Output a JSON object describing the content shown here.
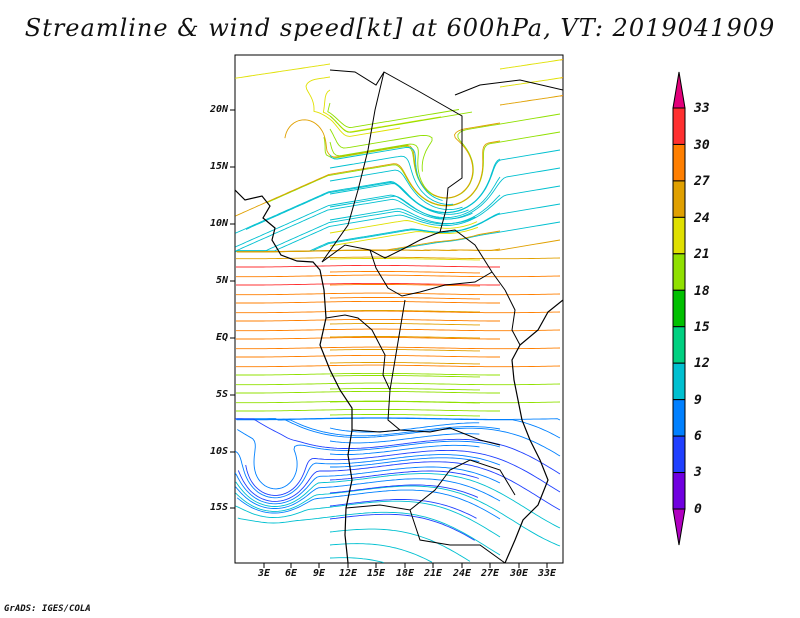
{
  "title": "Streamline & wind speed[kt] at 600hPa, VT: 2019041909",
  "map": {
    "lat_labels": [
      "20N",
      "15N",
      "10N",
      "5N",
      "EQ",
      "5S",
      "10S",
      "15S"
    ],
    "lon_labels": [
      "3E",
      "6E",
      "9E",
      "12E",
      "15E",
      "18E",
      "21E",
      "24E",
      "27E",
      "30E",
      "33E"
    ]
  },
  "colorbar": {
    "labels": [
      "33",
      "30",
      "27",
      "24",
      "21",
      "18",
      "15",
      "12",
      "9",
      "6",
      "3",
      "0"
    ],
    "colors": [
      "#e2007a",
      "#ff3030",
      "#ff7f00",
      "#e0a000",
      "#e0e000",
      "#90e000",
      "#00c000",
      "#00d080",
      "#00c0d0",
      "#0080ff",
      "#2040ff",
      "#7000e0",
      "#b000c0"
    ]
  },
  "credit": "GrADS: IGES/COLA"
}
